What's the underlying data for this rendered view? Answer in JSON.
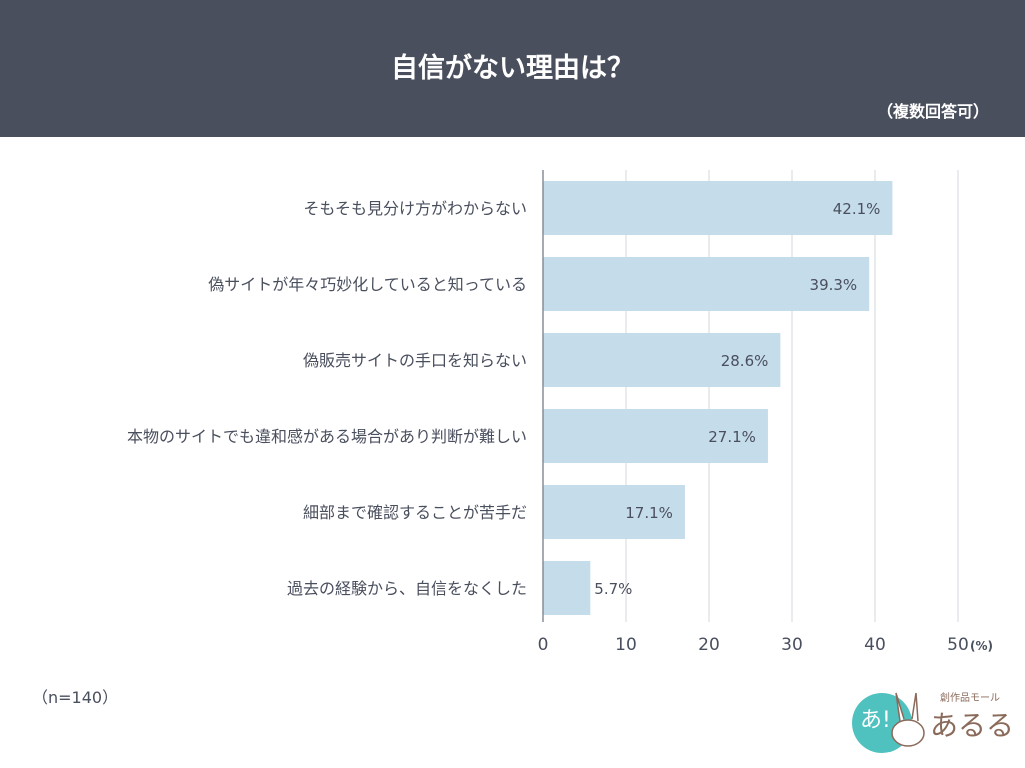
{
  "header": {
    "title": "自信がない理由は？",
    "subtitle": "（複数回答可）"
  },
  "chart_data": {
    "type": "bar",
    "orientation": "horizontal",
    "categories": [
      "そもそも見分け方がわからない",
      "偽サイトが年々巧妙化していると知っている",
      "偽販売サイトの手口を知らない",
      "本物のサイトでも違和感がある場合があり判断が難しい",
      "細部まで確認することが苦手だ",
      "過去の経験から、自信をなくした"
    ],
    "values": [
      42.1,
      39.3,
      28.6,
      27.1,
      17.1,
      5.7
    ],
    "data_labels": [
      "42.1%",
      "39.3%",
      "28.6%",
      "27.1%",
      "17.1%",
      "5.7%"
    ],
    "xlim": [
      0,
      50
    ],
    "xticks": [
      "0",
      "10",
      "20",
      "30",
      "40",
      "50"
    ],
    "x_unit": "(%)",
    "grid": true,
    "bar_color": "#c5dcea"
  },
  "note": "（n=140）",
  "logo": {
    "text": "創作品モール あるる"
  },
  "colors": {
    "header_bg": "#4a4f5e",
    "text": "#4a4f5e",
    "grid": "#d5d7dc",
    "logo_teal": "#4fc2c0",
    "logo_brown": "#8a6a5a"
  }
}
